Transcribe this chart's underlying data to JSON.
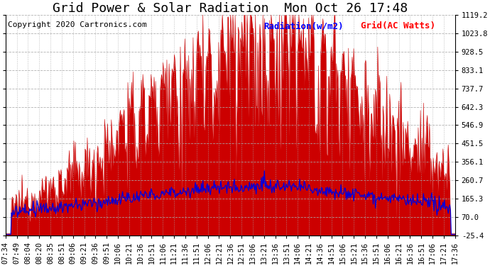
{
  "title": "Grid Power & Solar Radiation  Mon Oct 26 17:48",
  "copyright": "Copyright 2020 Cartronics.com",
  "legend_radiation": "Radiation(w/m2)",
  "legend_grid": "Grid(AC Watts)",
  "ytick_labels": [
    "1119.2",
    "1023.8",
    "928.5",
    "833.1",
    "737.7",
    "642.3",
    "546.9",
    "451.5",
    "356.1",
    "260.7",
    "165.3",
    "70.0",
    "-25.4"
  ],
  "ytick_values": [
    1119.2,
    1023.8,
    928.5,
    833.1,
    737.7,
    642.3,
    546.9,
    451.5,
    356.1,
    260.7,
    165.3,
    70.0,
    -25.4
  ],
  "ymin": -25.4,
  "ymax": 1119.2,
  "background_color": "#ffffff",
  "grid_color": "#aaaaaa",
  "radiation_color": "#cc0000",
  "radiation_fill": "#cc0000",
  "grid_line_color": "#0000dd",
  "title_fontsize": 13,
  "copyright_fontsize": 8,
  "legend_fontsize": 9,
  "tick_fontsize": 7.5,
  "x_tick_labels": [
    "07:34",
    "07:49",
    "08:04",
    "08:20",
    "08:35",
    "08:51",
    "09:06",
    "09:21",
    "09:36",
    "09:51",
    "10:06",
    "10:21",
    "10:36",
    "10:51",
    "11:06",
    "11:21",
    "11:36",
    "11:51",
    "12:06",
    "12:21",
    "12:36",
    "12:51",
    "13:06",
    "13:21",
    "13:36",
    "13:51",
    "14:06",
    "14:21",
    "14:36",
    "14:51",
    "15:06",
    "15:21",
    "15:36",
    "15:51",
    "16:06",
    "16:21",
    "16:36",
    "16:51",
    "17:06",
    "17:21",
    "17:36"
  ]
}
